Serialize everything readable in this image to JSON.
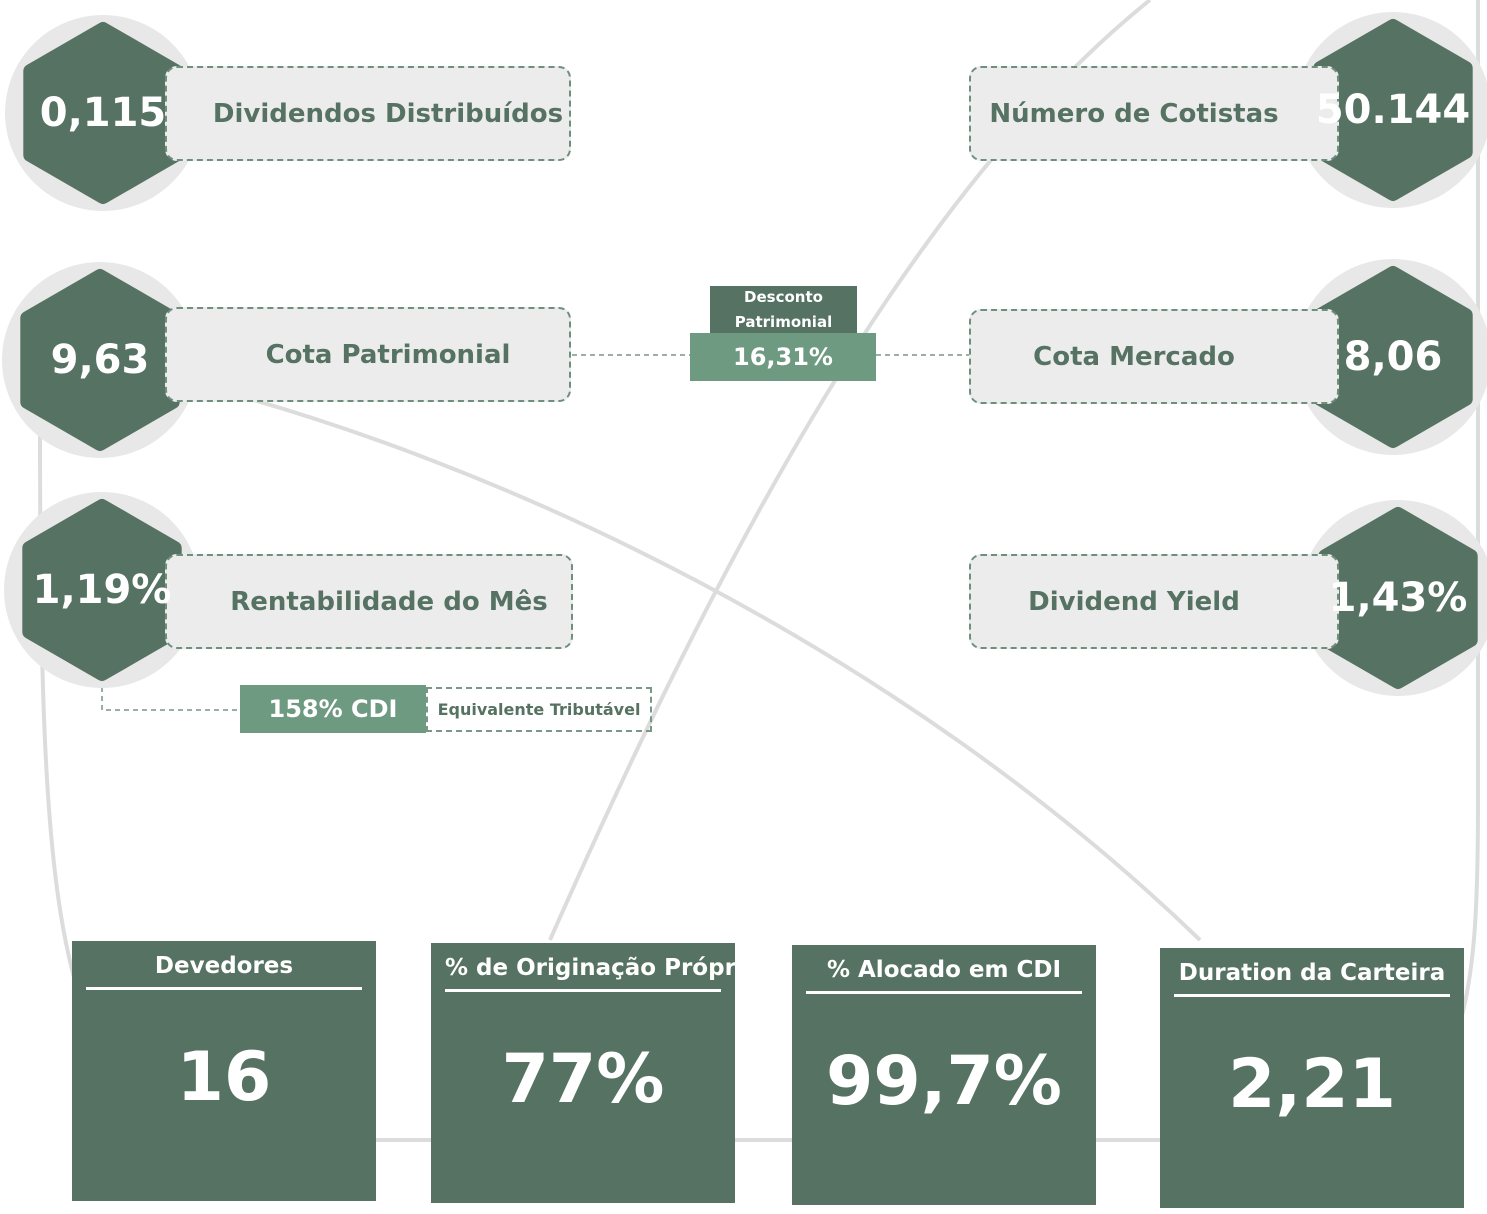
{
  "metrics": [
    {
      "value": "0,115",
      "label": "Dividendos Distribuídos"
    },
    {
      "value": "9,63",
      "label": "Cota Patrimonial"
    },
    {
      "value": "1,19%",
      "label": "Rentabilidade do Mês"
    },
    {
      "value": "50.144",
      "label": "Número de Cotistas"
    },
    {
      "value": "8,06",
      "label": "Cota Mercado"
    },
    {
      "value": "1,43%",
      "label": "Dividend Yield"
    }
  ],
  "discount": {
    "label": "Desconto Patrimonial",
    "value": "16,31%"
  },
  "cdi": {
    "value": "158% CDI",
    "label": "Equivalente Tributável"
  },
  "cards": [
    {
      "title": "Devedores",
      "value": "16"
    },
    {
      "title": "% de Originação Própria",
      "value": "77%"
    },
    {
      "title": "% Alocado em CDI",
      "value": "99,7%"
    },
    {
      "title": "Duration da Carteira",
      "value": "2,21"
    }
  ]
}
